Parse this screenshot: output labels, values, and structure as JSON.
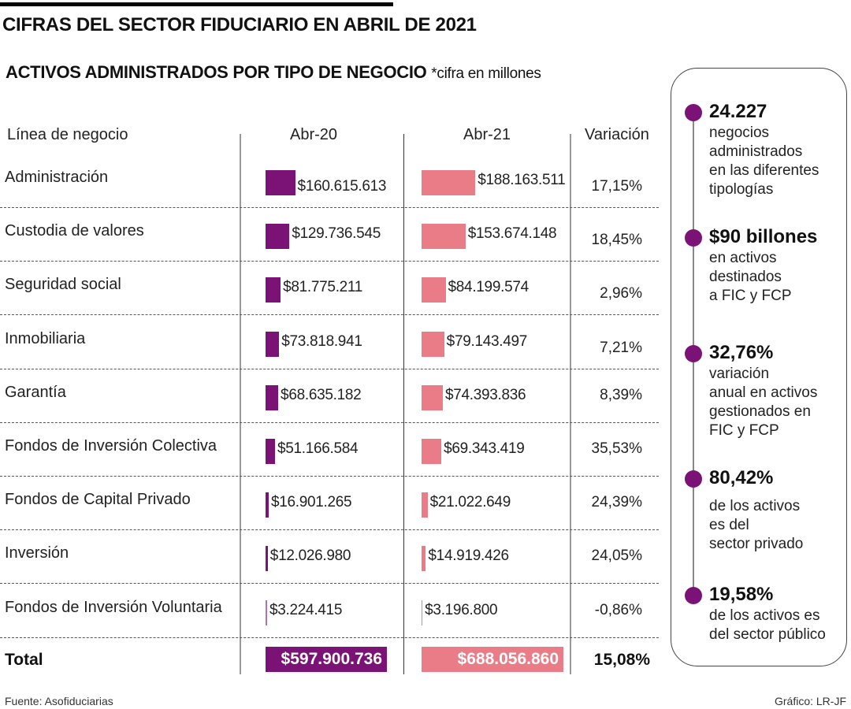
{
  "header": {
    "title": "CIFRAS DEL SECTOR FIDUCIARIO EN ABRIL DE 2021",
    "subtitle": "ACTIVOS ADMINISTRADOS POR TIPO DE NEGOCIO",
    "note": "*cifra en millones"
  },
  "columns": {
    "line": "Línea de negocio",
    "y2020": "Abr-20",
    "y2021": "Abr-21",
    "variation": "Variación"
  },
  "colors": {
    "abr20": "#7b1275",
    "abr21": "#e97c86"
  },
  "chart_data": {
    "type": "table",
    "title": "ACTIVOS ADMINISTRADOS POR TIPO DE NEGOCIO",
    "unit": "millones de pesos",
    "series": [
      {
        "name": "Abr-20",
        "values": [
          160615613,
          129736545,
          81775211,
          73818941,
          68635182,
          51166584,
          16901265,
          12026980,
          3224415
        ]
      },
      {
        "name": "Abr-21",
        "values": [
          188163511,
          153674148,
          84199574,
          79143497,
          74393836,
          69343419,
          21022649,
          14919426,
          3196800
        ]
      }
    ],
    "categories": [
      "Administración",
      "Custodia de valores",
      "Seguridad social",
      "Inmobiliaria",
      "Garantía",
      "Fondos de Inversión Colectiva",
      "Fondos de Capital Privado",
      "Inversión",
      "Fondos de Inversión Voluntaria"
    ],
    "rows": [
      {
        "label": "Administración",
        "abr20": 160615613,
        "abr20_text": "$160.615.613",
        "abr21": 188163511,
        "abr21_text": "$188.163.511",
        "variation": "17,15%"
      },
      {
        "label": "Custodia de valores",
        "abr20": 129736545,
        "abr20_text": "$129.736.545",
        "abr21": 153674148,
        "abr21_text": "$153.674.148",
        "variation": "18,45%"
      },
      {
        "label": "Seguridad social",
        "abr20": 81775211,
        "abr20_text": "$81.775.211",
        "abr21": 84199574,
        "abr21_text": "$84.199.574",
        "variation": "2,96%"
      },
      {
        "label": "Inmobiliaria",
        "abr20": 73818941,
        "abr20_text": "$73.818.941",
        "abr21": 79143497,
        "abr21_text": "$79.143.497",
        "variation": "7,21%"
      },
      {
        "label": "Garantía",
        "abr20": 68635182,
        "abr20_text": "$68.635.182",
        "abr21": 74393836,
        "abr21_text": "$74.393.836",
        "variation": "8,39%"
      },
      {
        "label": "Fondos de Inversión Colectiva",
        "abr20": 51166584,
        "abr20_text": "$51.166.584",
        "abr21": 69343419,
        "abr21_text": "$69.343.419",
        "variation": "35,53%"
      },
      {
        "label": "Fondos de Capital Privado",
        "abr20": 16901265,
        "abr20_text": "$16.901.265",
        "abr21": 21022649,
        "abr21_text": "$21.022.649",
        "variation": "24,39%"
      },
      {
        "label": "Inversión",
        "abr20": 12026980,
        "abr20_text": "$12.026.980",
        "abr21": 14919426,
        "abr21_text": "$14.919.426",
        "variation": "24,05%"
      },
      {
        "label": "Fondos de Inversión Voluntaria",
        "abr20": 3224415,
        "abr20_text": "$3.224.415",
        "abr21": 3196800,
        "abr21_text": "$3.196.800",
        "variation": "-0,86%"
      }
    ],
    "total": {
      "label": "Total",
      "abr20_text": "$597.900.736",
      "abr21_text": "$688.056.860",
      "variation": "15,08%"
    }
  },
  "highlights": [
    {
      "value": "24.227",
      "text": "negocios\nadministrados\nen las diferentes\ntipologías"
    },
    {
      "value": "$90 billones",
      "text": "en activos\ndestinados\na FIC y FCP"
    },
    {
      "value": "32,76%",
      "text": "variación\nanual en activos\ngestionados en\nFIC y FCP"
    },
    {
      "value": "80,42%",
      "text": "de los activos\nes del\nsector privado"
    },
    {
      "value": "19,58%",
      "text": "de los activos es\ndel sector público"
    }
  ],
  "footer": {
    "source": "Fuente: Asofiduciarias",
    "credit": "Gráfico: LR-JF"
  }
}
